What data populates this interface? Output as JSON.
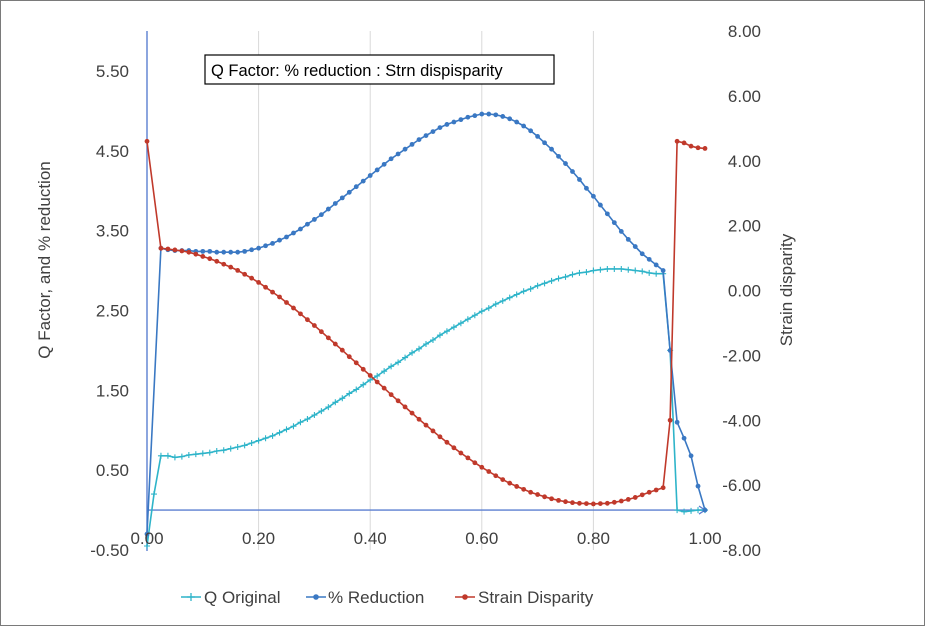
{
  "chart_data": {
    "type": "line",
    "title": "Q Factor:   % reduction :  Strn dispisparity",
    "xlabel": "",
    "ylabel": "Q Factor, and  % reduction",
    "y2label": "Strain  disparity",
    "xlim": [
      0,
      1.0
    ],
    "ylim": [
      -0.5,
      6.0
    ],
    "y2lim": [
      -8,
      8
    ],
    "x_ticks": [
      "0.00",
      "0.20",
      "0.40",
      "0.60",
      "0.80",
      "1.00"
    ],
    "y_ticks": [
      "-0.50",
      "0.50",
      "1.50",
      "2.50",
      "3.50",
      "4.50",
      "5.50"
    ],
    "y2_ticks": [
      "-8.00",
      "-6.00",
      "-4.00",
      "-2.00",
      "0.00",
      "2.00",
      "4.00",
      "6.00",
      "8.00"
    ],
    "grid": "vertical",
    "legend_position": "bottom",
    "series": [
      {
        "name": "Q Original",
        "axis": "left",
        "color": "#2eb4c9",
        "marker": "plus",
        "x": [
          0,
          0.0125,
          0.025,
          0.0375,
          0.05,
          0.0625,
          0.075,
          0.0875,
          0.1,
          0.1125,
          0.125,
          0.1375,
          0.15,
          0.1625,
          0.175,
          0.1875,
          0.2,
          0.2125,
          0.225,
          0.2375,
          0.25,
          0.2625,
          0.275,
          0.2875,
          0.3,
          0.3125,
          0.325,
          0.3375,
          0.35,
          0.3625,
          0.375,
          0.3875,
          0.4,
          0.4125,
          0.425,
          0.4375,
          0.45,
          0.4625,
          0.475,
          0.4875,
          0.5,
          0.5125,
          0.525,
          0.5375,
          0.55,
          0.5625,
          0.575,
          0.5875,
          0.6,
          0.6125,
          0.625,
          0.6375,
          0.65,
          0.6625,
          0.675,
          0.6875,
          0.7,
          0.7125,
          0.725,
          0.7375,
          0.75,
          0.7625,
          0.775,
          0.7875,
          0.8,
          0.8125,
          0.825,
          0.8375,
          0.85,
          0.8625,
          0.875,
          0.8875,
          0.9,
          0.9125,
          0.925,
          0.9375,
          0.95,
          0.9625,
          0.975,
          0.9875,
          1.0
        ],
        "values": [
          -0.45,
          0.2,
          0.68,
          0.68,
          0.66,
          0.67,
          0.69,
          0.7,
          0.71,
          0.72,
          0.74,
          0.75,
          0.77,
          0.79,
          0.81,
          0.84,
          0.87,
          0.9,
          0.93,
          0.97,
          1.01,
          1.05,
          1.1,
          1.14,
          1.19,
          1.24,
          1.29,
          1.35,
          1.4,
          1.46,
          1.51,
          1.57,
          1.63,
          1.68,
          1.74,
          1.8,
          1.85,
          1.91,
          1.97,
          2.02,
          2.08,
          2.13,
          2.19,
          2.24,
          2.29,
          2.34,
          2.39,
          2.44,
          2.49,
          2.53,
          2.58,
          2.62,
          2.66,
          2.7,
          2.74,
          2.77,
          2.81,
          2.84,
          2.87,
          2.9,
          2.92,
          2.95,
          2.97,
          2.98,
          3.0,
          3.01,
          3.02,
          3.02,
          3.02,
          3.01,
          3.0,
          2.99,
          2.97,
          2.96,
          2.96,
          2.0,
          0.0,
          -0.02,
          -0.01,
          0.0,
          0.0
        ]
      },
      {
        "name": "% Reduction",
        "axis": "left",
        "color": "#3a78c3",
        "marker": "circle",
        "x": [
          0,
          0.025,
          0.0375,
          0.05,
          0.0625,
          0.075,
          0.0875,
          0.1,
          0.1125,
          0.125,
          0.1375,
          0.15,
          0.1625,
          0.175,
          0.1875,
          0.2,
          0.2125,
          0.225,
          0.2375,
          0.25,
          0.2625,
          0.275,
          0.2875,
          0.3,
          0.3125,
          0.325,
          0.3375,
          0.35,
          0.3625,
          0.375,
          0.3875,
          0.4,
          0.4125,
          0.425,
          0.4375,
          0.45,
          0.4625,
          0.475,
          0.4875,
          0.5,
          0.5125,
          0.525,
          0.5375,
          0.55,
          0.5625,
          0.575,
          0.5875,
          0.6,
          0.6125,
          0.625,
          0.6375,
          0.65,
          0.6625,
          0.675,
          0.6875,
          0.7,
          0.7125,
          0.725,
          0.7375,
          0.75,
          0.7625,
          0.775,
          0.7875,
          0.8,
          0.8125,
          0.825,
          0.8375,
          0.85,
          0.8625,
          0.875,
          0.8875,
          0.9,
          0.9125,
          0.925,
          0.9375,
          0.95,
          0.9625,
          0.975,
          0.9875,
          1.0
        ],
        "values": [
          -0.3,
          3.28,
          3.26,
          3.25,
          3.25,
          3.25,
          3.24,
          3.24,
          3.24,
          3.23,
          3.23,
          3.23,
          3.23,
          3.24,
          3.26,
          3.28,
          3.31,
          3.34,
          3.38,
          3.42,
          3.47,
          3.52,
          3.58,
          3.64,
          3.7,
          3.77,
          3.84,
          3.91,
          3.98,
          4.05,
          4.12,
          4.19,
          4.26,
          4.33,
          4.4,
          4.46,
          4.52,
          4.58,
          4.64,
          4.69,
          4.74,
          4.79,
          4.83,
          4.86,
          4.89,
          4.92,
          4.94,
          4.96,
          4.96,
          4.95,
          4.93,
          4.9,
          4.86,
          4.81,
          4.75,
          4.68,
          4.6,
          4.52,
          4.43,
          4.34,
          4.24,
          4.14,
          4.03,
          3.93,
          3.82,
          3.71,
          3.6,
          3.49,
          3.39,
          3.3,
          3.21,
          3.14,
          3.07,
          3.0,
          2.0,
          1.1,
          0.9,
          0.68,
          0.3,
          0.0
        ]
      },
      {
        "name": "Strain Disparity",
        "axis": "right",
        "color": "#c0392b",
        "marker": "circle",
        "x": [
          0,
          0.025,
          0.0375,
          0.05,
          0.0625,
          0.075,
          0.0875,
          0.1,
          0.1125,
          0.125,
          0.1375,
          0.15,
          0.1625,
          0.175,
          0.1875,
          0.2,
          0.2125,
          0.225,
          0.2375,
          0.25,
          0.2625,
          0.275,
          0.2875,
          0.3,
          0.3125,
          0.325,
          0.3375,
          0.35,
          0.3625,
          0.375,
          0.3875,
          0.4,
          0.4125,
          0.425,
          0.4375,
          0.45,
          0.4625,
          0.475,
          0.4875,
          0.5,
          0.5125,
          0.525,
          0.5375,
          0.55,
          0.5625,
          0.575,
          0.5875,
          0.6,
          0.6125,
          0.625,
          0.6375,
          0.65,
          0.6625,
          0.675,
          0.6875,
          0.7,
          0.7125,
          0.725,
          0.7375,
          0.75,
          0.7625,
          0.775,
          0.7875,
          0.8,
          0.8125,
          0.825,
          0.8375,
          0.85,
          0.8625,
          0.875,
          0.8875,
          0.9,
          0.9125,
          0.925,
          0.9375,
          0.95,
          0.9625,
          0.975,
          0.9875,
          1.0
        ],
        "values": [
          4.6,
          1.3,
          1.28,
          1.25,
          1.22,
          1.18,
          1.12,
          1.05,
          0.98,
          0.9,
          0.81,
          0.72,
          0.62,
          0.5,
          0.38,
          0.25,
          0.1,
          -0.05,
          -0.2,
          -0.37,
          -0.54,
          -0.72,
          -0.9,
          -1.08,
          -1.27,
          -1.46,
          -1.65,
          -1.84,
          -2.04,
          -2.23,
          -2.43,
          -2.62,
          -2.82,
          -3.01,
          -3.21,
          -3.4,
          -3.59,
          -3.78,
          -3.97,
          -4.15,
          -4.33,
          -4.51,
          -4.68,
          -4.85,
          -5.01,
          -5.16,
          -5.31,
          -5.45,
          -5.58,
          -5.71,
          -5.83,
          -5.94,
          -6.04,
          -6.13,
          -6.22,
          -6.29,
          -6.36,
          -6.42,
          -6.47,
          -6.51,
          -6.54,
          -6.56,
          -6.57,
          -6.58,
          -6.57,
          -6.56,
          -6.53,
          -6.49,
          -6.44,
          -6.38,
          -6.3,
          -6.22,
          -6.15,
          -6.08,
          -4.0,
          4.6,
          4.55,
          4.45,
          4.4,
          4.38
        ]
      }
    ]
  }
}
